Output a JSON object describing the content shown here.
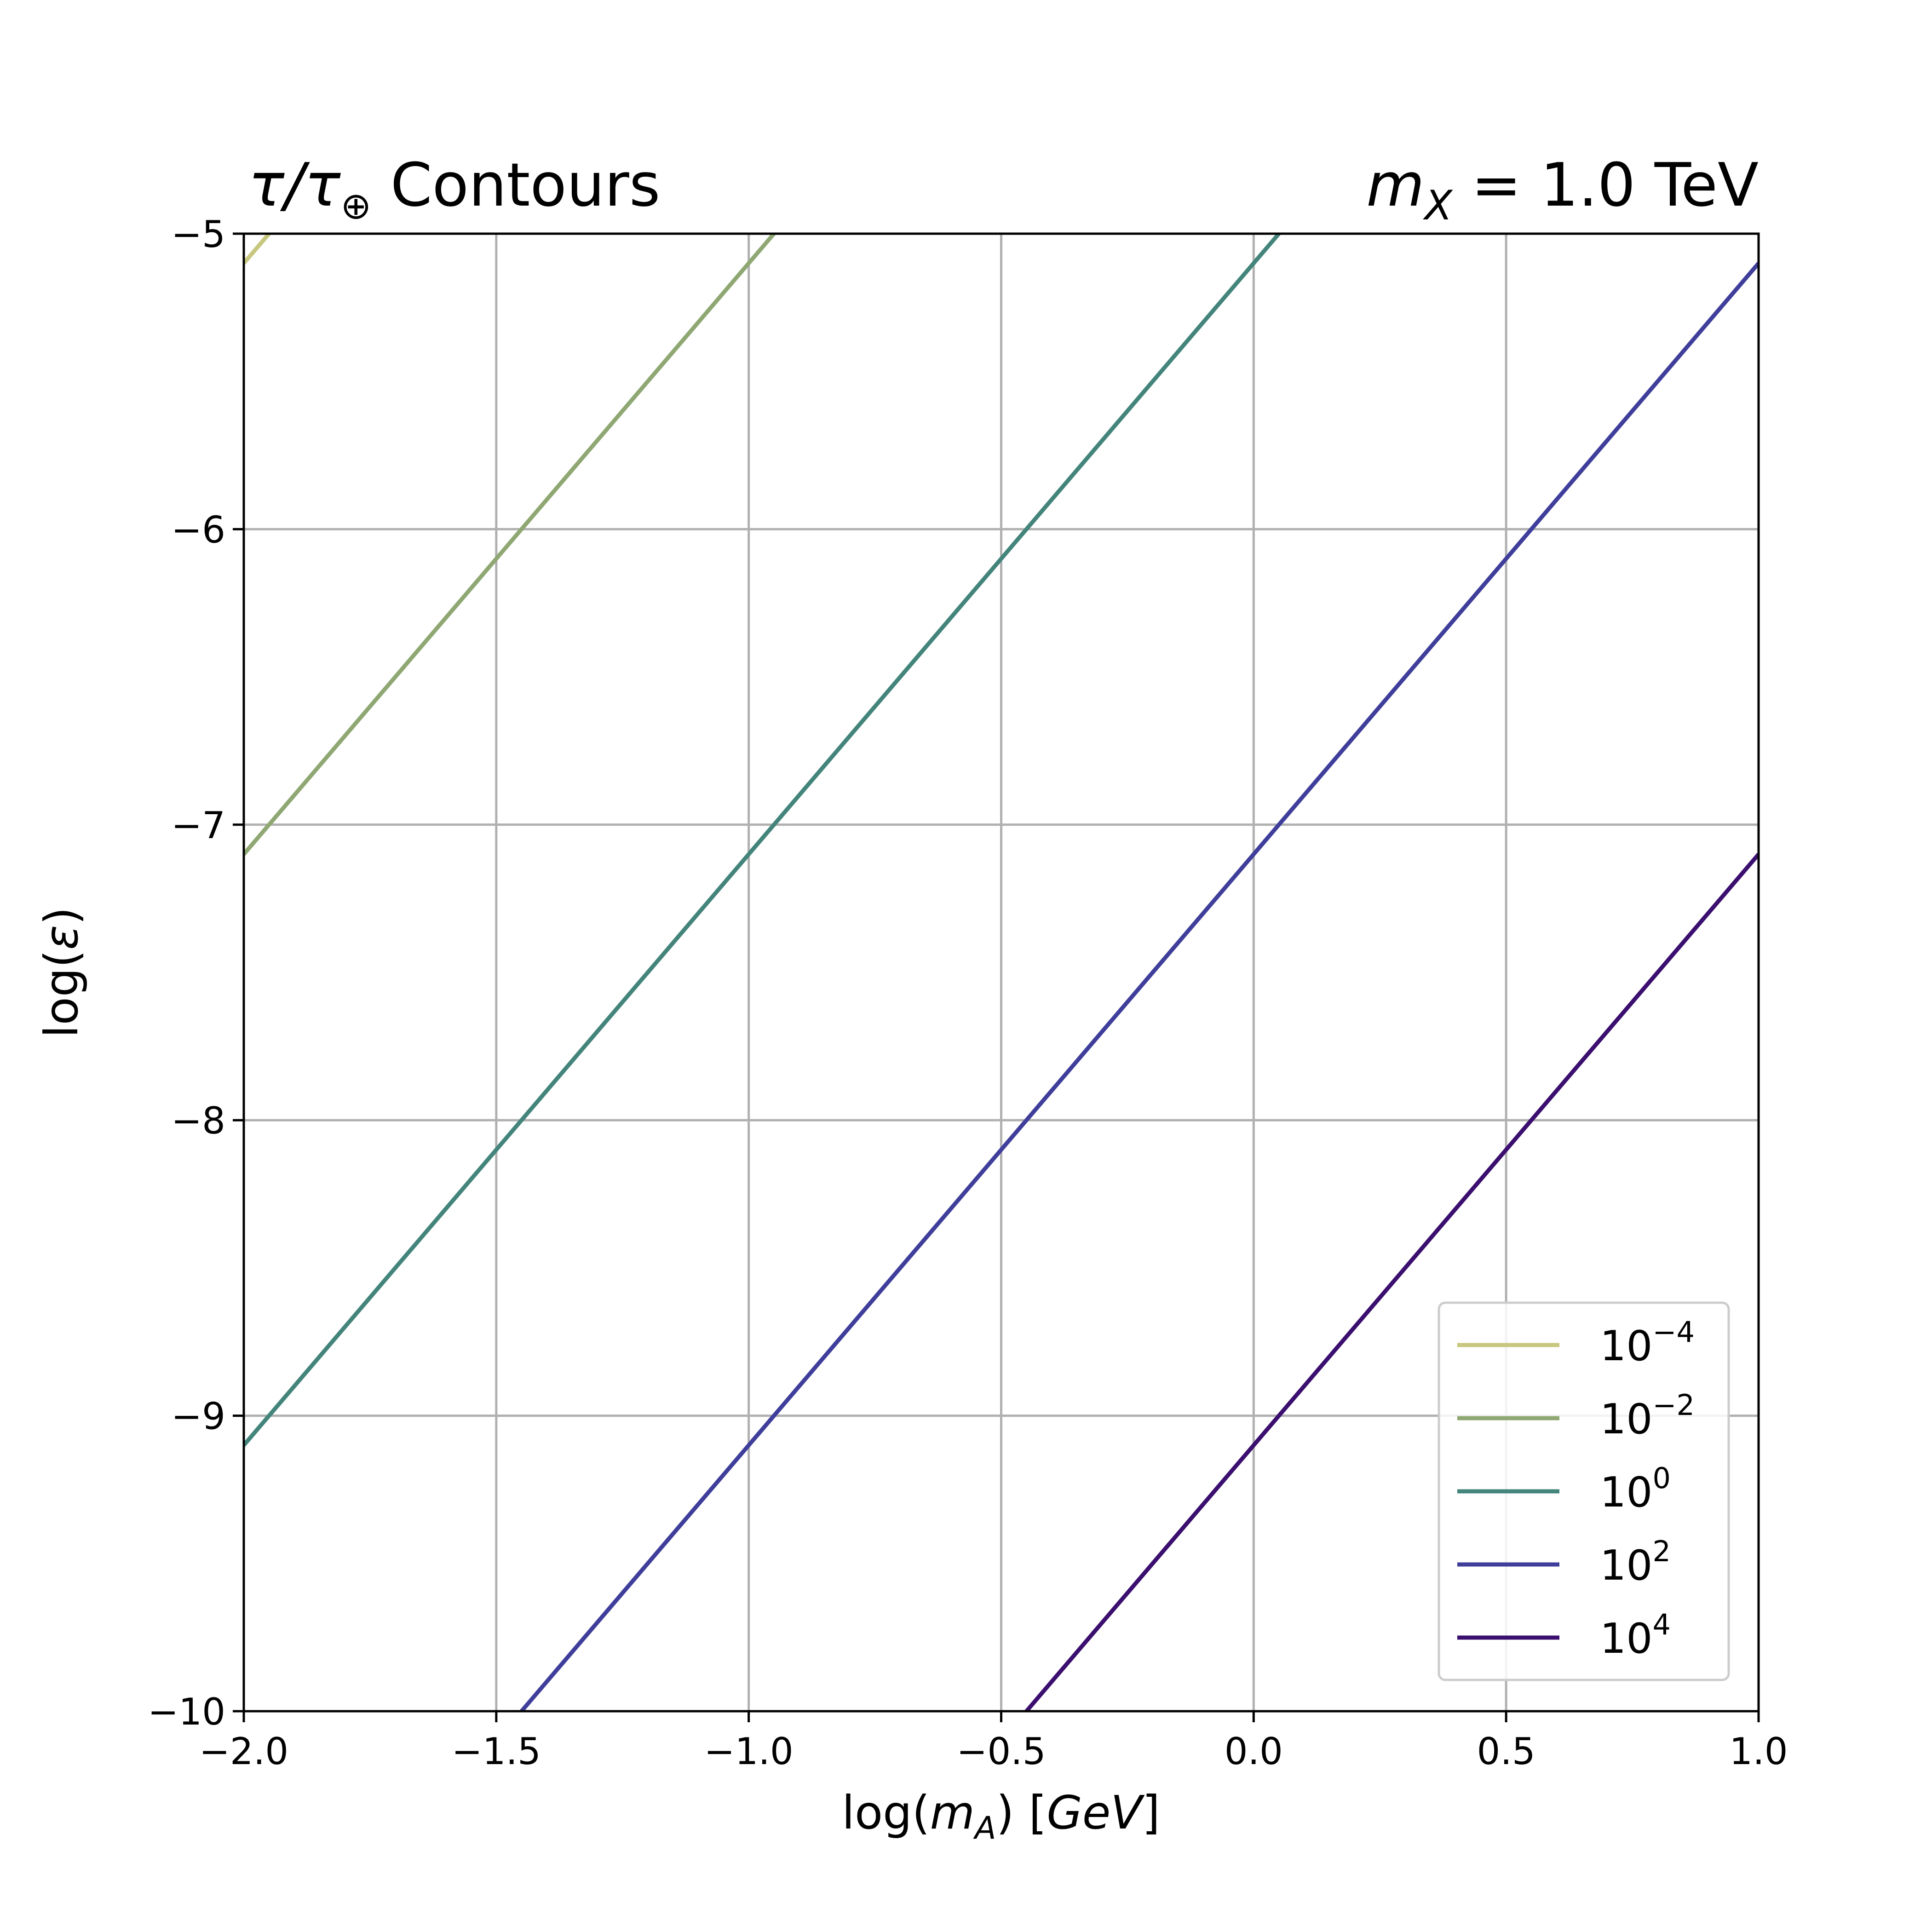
{
  "chart_data": {
    "type": "line",
    "title": {
      "symbol_main": "τ/τ",
      "symbol_sub": "⊕",
      "text": " Contours",
      "right_var": "m",
      "right_sub": "X",
      "right_text": " = 1.0 TeV"
    },
    "xlabel": {
      "prefix": "log(",
      "var": "m",
      "sub": "A",
      "suffix": ") [",
      "unit": "GeV",
      "close": "]"
    },
    "ylabel": {
      "prefix": "log(",
      "var": "ε",
      "suffix": ")"
    },
    "xlim": [
      -2.0,
      1.0
    ],
    "ylim": [
      -10,
      -5
    ],
    "x_ticks": [
      -2.0,
      -1.5,
      -1.0,
      -0.5,
      0.0,
      0.5,
      1.0
    ],
    "x_tick_labels": [
      "−2.0",
      "−1.5",
      "−1.0",
      "−0.5",
      "0.0",
      "0.5",
      "1.0"
    ],
    "y_ticks": [
      -5,
      -6,
      -7,
      -8,
      -9,
      -10
    ],
    "y_tick_labels": [
      "−5",
      "−6",
      "−7",
      "−8",
      "−9",
      "−10"
    ],
    "grid": true,
    "legend_position": "lower-right",
    "series": [
      {
        "name_base": "10",
        "name_exp": "−4",
        "color": "#c8c77f",
        "x": [
          -2.0,
          -1.95
        ],
        "y": [
          -5.1,
          -5.0
        ]
      },
      {
        "name_base": "10",
        "name_exp": "−2",
        "color": "#8fa873",
        "x": [
          -2.0,
          -0.95
        ],
        "y": [
          -7.1,
          -5.0
        ]
      },
      {
        "name_base": "10",
        "name_exp": "0",
        "color": "#43847b",
        "x": [
          -2.0,
          0.05
        ],
        "y": [
          -9.1,
          -5.0
        ]
      },
      {
        "name_base": "10",
        "name_exp": "2",
        "color": "#3f3e9b",
        "x": [
          -1.45,
          1.0
        ],
        "y": [
          -10.0,
          -5.1
        ]
      },
      {
        "name_base": "10",
        "name_exp": "4",
        "color": "#3b0f6f",
        "x": [
          -0.45,
          1.0
        ],
        "y": [
          -10.0,
          -7.1
        ]
      }
    ]
  }
}
